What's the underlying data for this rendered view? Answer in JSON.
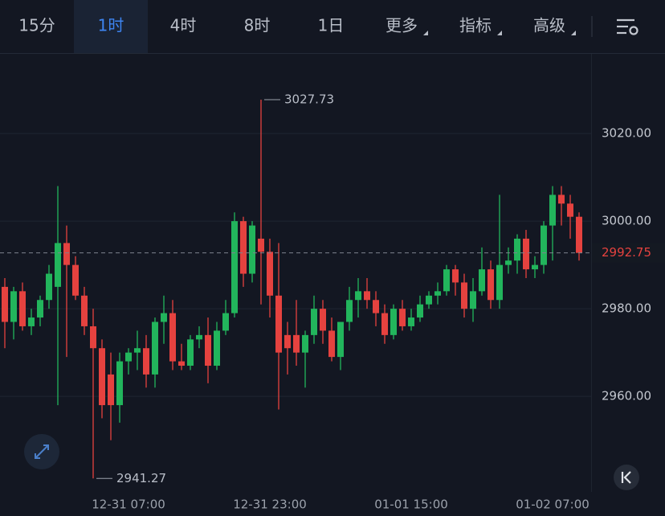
{
  "toolbar": {
    "tabs": [
      {
        "label": "15分",
        "dropdown": false
      },
      {
        "label": "1时",
        "dropdown": false
      },
      {
        "label": "4时",
        "dropdown": false
      },
      {
        "label": "8时",
        "dropdown": false
      },
      {
        "label": "1日",
        "dropdown": false
      },
      {
        "label": "更多",
        "dropdown": true
      },
      {
        "label": "指标",
        "dropdown": true
      },
      {
        "label": "高级",
        "dropdown": true
      }
    ],
    "selected": 1
  },
  "chart_data": {
    "type": "candlestick",
    "categories": [
      null,
      null,
      null,
      null,
      null,
      null,
      null,
      null,
      null,
      null,
      null,
      null,
      null,
      null,
      "12-31 07:00",
      null,
      null,
      null,
      null,
      null,
      null,
      null,
      null,
      null,
      null,
      null,
      null,
      null,
      null,
      null,
      "12-31 23:00",
      null,
      null,
      null,
      null,
      null,
      null,
      null,
      null,
      null,
      null,
      null,
      null,
      null,
      null,
      null,
      "01-01 15:00",
      null,
      null,
      null,
      null,
      null,
      null,
      null,
      null,
      null,
      null,
      null,
      null,
      null,
      null,
      null,
      "01-02 07:00",
      null,
      null,
      null
    ],
    "open": [
      2985,
      2977,
      2984,
      2976,
      2978,
      2982,
      2985,
      2995,
      2990,
      2983,
      2976,
      2971,
      2965,
      2958,
      2968,
      2970,
      2971,
      2965,
      2977,
      2979,
      2968,
      2967,
      2973,
      2974,
      2967,
      2975,
      2979,
      3000,
      2988,
      2996,
      2993,
      2983,
      2974,
      2974,
      2970,
      2974,
      2980,
      2975,
      2969,
      2977,
      2982,
      2984,
      2982,
      2979,
      2974,
      2980,
      2976,
      2978,
      2981,
      2983,
      2984,
      2989,
      2986,
      2980,
      2984,
      2989,
      2982,
      2990,
      2991,
      2996,
      2989,
      2990,
      2999,
      3006,
      3004,
      3001
    ],
    "high": [
      2987,
      2985,
      2986,
      2980,
      2983,
      2990,
      3008,
      2999,
      2992,
      2985,
      2980,
      2973,
      2970,
      2970,
      2971,
      2975,
      2974,
      2978,
      2983,
      2982,
      2972,
      2974,
      2976,
      2978,
      2977,
      2982,
      3002,
      3001,
      3000,
      3027.73,
      2996,
      2995,
      2977,
      2982,
      2975,
      2983,
      2982,
      2978,
      2977,
      2985,
      2987,
      2987,
      2984,
      2981,
      2981,
      2982,
      2980,
      2983,
      2984,
      2986,
      2990,
      2990,
      2988,
      2987,
      2994,
      2991,
      3006,
      2994,
      2997,
      2998,
      2992,
      3000,
      3008,
      3008,
      3006,
      3002
    ],
    "low": [
      2971,
      2973,
      2975,
      2974,
      2976,
      2980,
      2958,
      2969,
      2982,
      2974,
      2941.27,
      2955,
      2950,
      2954,
      2965,
      2966,
      2962,
      2962,
      2972,
      2966,
      2966,
      2966,
      2971,
      2963,
      2966,
      2974,
      2978,
      2985,
      2986,
      2981,
      2978,
      2957,
      2965,
      2967,
      2962,
      2972,
      2972,
      2968,
      2966,
      2975,
      2978,
      2980,
      2976,
      2972,
      2973,
      2975,
      2975,
      2977,
      2980,
      2981,
      2983,
      2983,
      2978,
      2977,
      2983,
      2980,
      2980,
      2988,
      2988,
      2987,
      2987,
      2988,
      2991,
      2999,
      2996,
      2991
    ],
    "close": [
      2977,
      2984,
      2976,
      2978,
      2982,
      2988,
      2995,
      2990,
      2983,
      2976,
      2971,
      2958,
      2958,
      2968,
      2970,
      2971,
      2965,
      2977,
      2979,
      2968,
      2967,
      2973,
      2974,
      2967,
      2975,
      2979,
      3000,
      2988,
      2999,
      2993,
      2983,
      2970,
      2971,
      2970,
      2974,
      2980,
      2975,
      2969,
      2977,
      2982,
      2984,
      2982,
      2979,
      2974,
      2980,
      2976,
      2978,
      2981,
      2983,
      2984,
      2989,
      2986,
      2980,
      2984,
      2989,
      2982,
      2990,
      2991,
      2996,
      2989,
      2990,
      2999,
      3006,
      3004,
      3001,
      2992.75
    ],
    "up_color": "#22b55c",
    "down_color": "#e5423f",
    "ylim": [
      2938.2,
      3038
    ],
    "yticks": [
      {
        "value": 2960,
        "label": "2960.00"
      },
      {
        "value": 2980,
        "label": "2980.00"
      },
      {
        "value": 3000,
        "label": "3000.00"
      },
      {
        "value": 3020,
        "label": "3020.00"
      }
    ],
    "grid": true
  }
}
